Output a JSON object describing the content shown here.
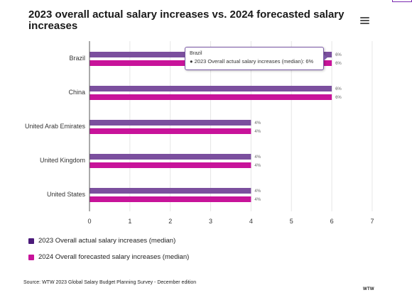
{
  "title": "2023 overall actual salary increases vs. 2024 forecasted salary increases",
  "menu_icon": "hamburger-menu-icon",
  "colors": {
    "series_2023": "#7b4f9e",
    "series_2024": "#c8139a",
    "legend_2023": "#4b1a7a",
    "legend_2024": "#c8139a",
    "grid": "#e6e6e6"
  },
  "tooltip": {
    "category": "Brazil",
    "text": "2023 Overall actual salary increases (median): 6%"
  },
  "legend": [
    {
      "label": "2023 Overall actual salary increases (median)"
    },
    {
      "label": "2024 Overall forecasted salary increases (median)"
    }
  ],
  "source": "Source: WTW 2023 Global Salary Budget Planning Survey - December edition",
  "logo_text": "WTW",
  "chart_data": {
    "type": "bar",
    "orientation": "horizontal",
    "categories": [
      "Brazil",
      "China",
      "United Arab Emirates",
      "United Kingdom",
      "United States"
    ],
    "series": [
      {
        "name": "2023 Overall actual salary increases (median)",
        "values": [
          6,
          6,
          4,
          4,
          4
        ],
        "data_labels": [
          "6%",
          "6%",
          "4%",
          "4%",
          "4%"
        ]
      },
      {
        "name": "2024 Overall forecasted salary increases (median)",
        "values": [
          6,
          6,
          4,
          4,
          4
        ],
        "data_labels": [
          "6%",
          "6%",
          "4%",
          "4%",
          "4%"
        ]
      }
    ],
    "x_ticks": [
      "0",
      "1",
      "2",
      "3",
      "4",
      "5",
      "6",
      "7"
    ],
    "xlim": [
      0,
      7
    ],
    "grid": true,
    "legend_position": "bottom-left"
  }
}
